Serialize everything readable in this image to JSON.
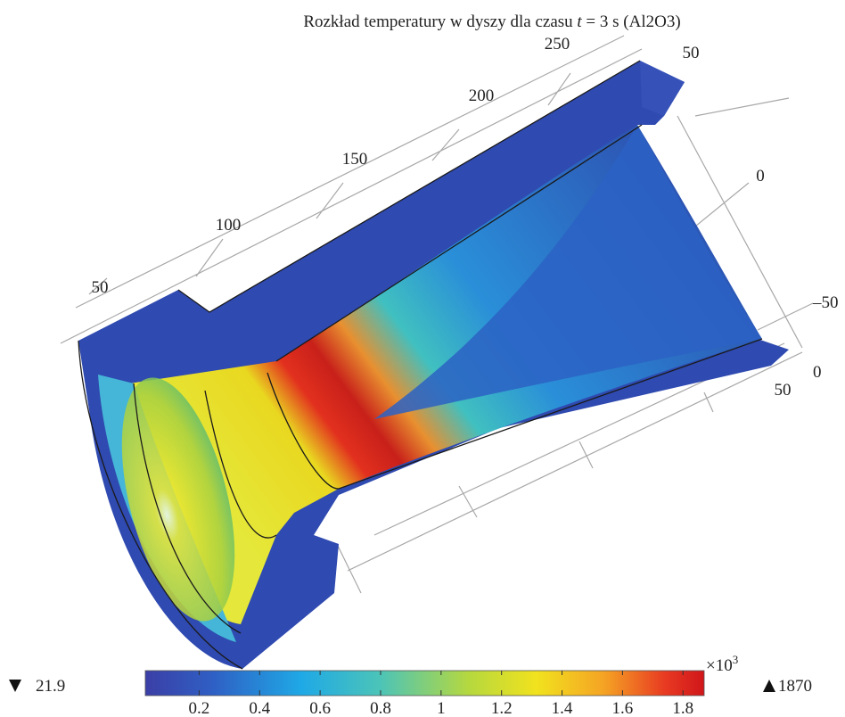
{
  "title": {
    "prefix": "Rozkład temperatury w dyszy dla czasu ",
    "variable": "t",
    "suffix": " = 3 s (Al2O3)"
  },
  "axis_labels": [
    "250",
    "50",
    "200",
    "150",
    "0",
    "100",
    "50",
    "–50",
    "0",
    "50"
  ],
  "colorbar": {
    "min": 21.9,
    "max": 1870,
    "ticks": [
      0.2,
      0.4,
      0.6,
      0.8,
      1,
      1.2,
      1.4,
      1.6,
      1.8
    ],
    "multiplier": "×10",
    "exponent": "3"
  }
}
